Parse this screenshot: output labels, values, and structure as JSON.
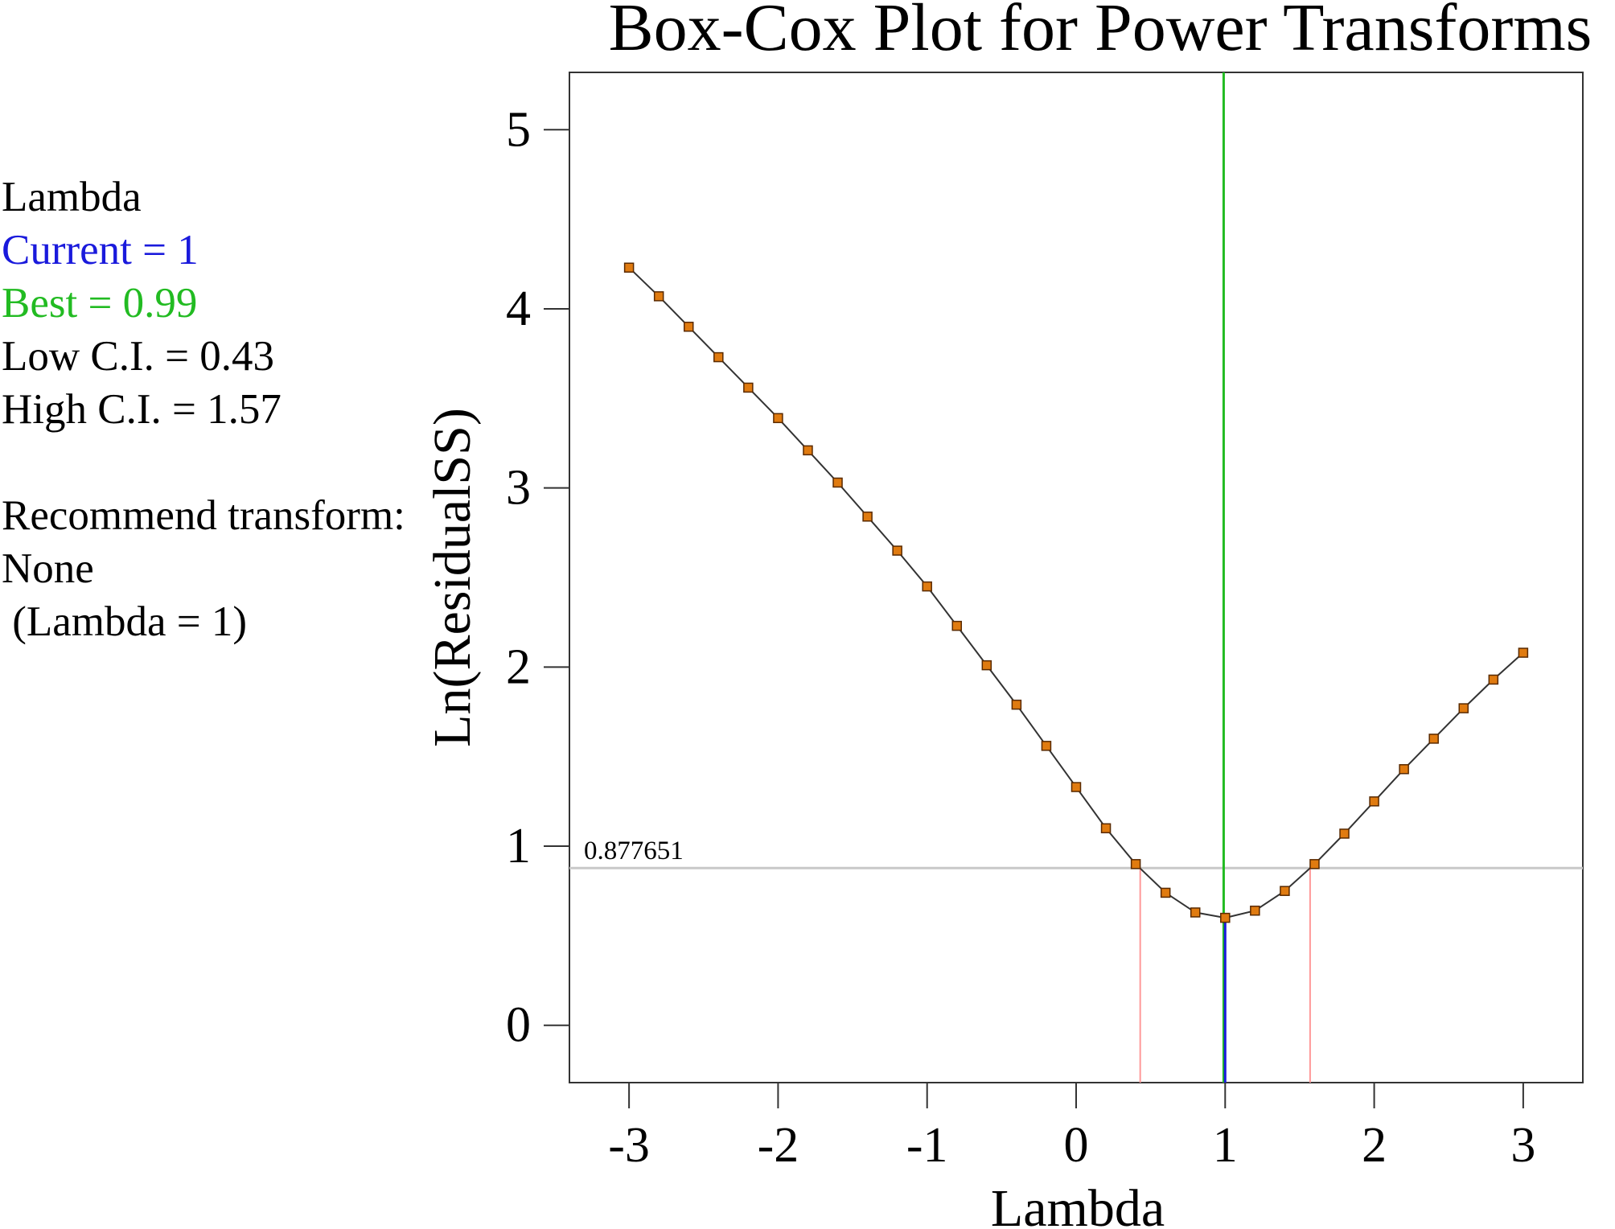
{
  "info": {
    "lambda_header": "Lambda",
    "current": "Current = 1",
    "best": "Best = 0.99",
    "low_ci": "Low C.I. = 0.43",
    "high_ci": "High C.I. = 1.57",
    "recommend_label": "Recommend transform:",
    "recommend_value": "None",
    "recommend_detail": " (Lambda = 1)"
  },
  "colors": {
    "current": "#1a1adc",
    "best": "#22bb22",
    "ci": "#ff9999",
    "threshold": "#c8c8c8",
    "curve": "#333333",
    "marker_fill": "#e07b10",
    "marker_stroke": "#5a2a00"
  },
  "chart_data": {
    "type": "line",
    "title": "Box-Cox Plot for Power Transforms",
    "xlabel": "Lambda",
    "ylabel": "Ln(ResidualSS)",
    "xlim": [
      -3.4,
      3.4
    ],
    "ylim": [
      -0.32,
      5.32
    ],
    "xticks": [
      -3,
      -2,
      -1,
      0,
      1,
      2,
      3
    ],
    "yticks": [
      0,
      1,
      2,
      3,
      4,
      5
    ],
    "threshold": 0.877651,
    "threshold_label": "0.877651",
    "current_lambda": 1,
    "best_lambda": 0.99,
    "low_ci": 0.43,
    "high_ci": 1.57,
    "grid": false,
    "x": [
      -3,
      -2.8,
      -2.6,
      -2.4,
      -2.2,
      -2,
      -1.8,
      -1.6,
      -1.4,
      -1.2,
      -1,
      -0.8,
      -0.6,
      -0.4,
      -0.2,
      0,
      0.2,
      0.4,
      0.6,
      0.8,
      1,
      1.2,
      1.4,
      1.6,
      1.8,
      2,
      2.2,
      2.4,
      2.6,
      2.8,
      3
    ],
    "y": [
      4.23,
      4.07,
      3.9,
      3.73,
      3.56,
      3.39,
      3.21,
      3.03,
      2.84,
      2.65,
      2.45,
      2.23,
      2.01,
      1.79,
      1.56,
      1.33,
      1.1,
      0.9,
      0.74,
      0.63,
      0.6,
      0.64,
      0.75,
      0.9,
      1.07,
      1.25,
      1.43,
      1.6,
      1.77,
      1.93,
      2.08
    ]
  }
}
